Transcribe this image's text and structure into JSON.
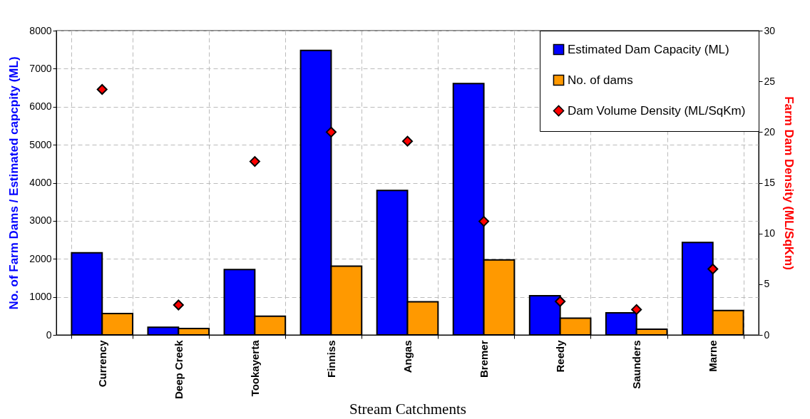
{
  "chart_data": {
    "type": "bar",
    "xlabel": "Stream Catchments",
    "ylabel": "No. of Farm Dams / Estimated capcpity (ML)",
    "y2label": "Farm Dam Density (ML/SqKm)",
    "categories": [
      "Currency",
      "Deep Creek",
      "Tookayerta",
      "Finniss",
      "Angas",
      "Bremer",
      "Reedy",
      "Saunders",
      "Marne"
    ],
    "series": [
      {
        "name": "Estimated Dam Capacity (ML)",
        "color": "#0000ff",
        "values": [
          2160,
          200,
          1720,
          7480,
          3800,
          6610,
          1030,
          580,
          2430
        ]
      },
      {
        "name": "No. of dams",
        "color": "#ff9900",
        "values": [
          560,
          170,
          490,
          1810,
          870,
          1970,
          440,
          150,
          640
        ]
      },
      {
        "name": "Dam Volume Density (ML/SqKm)",
        "type": "scatter",
        "axis": "y2",
        "marker": "diamond",
        "color": "#ff0000",
        "values": [
          24.2,
          2.95,
          17.1,
          20.0,
          19.1,
          11.2,
          3.3,
          2.5,
          6.5
        ]
      }
    ],
    "ylim": [
      0,
      8000
    ],
    "yticks": [
      0,
      1000,
      2000,
      3000,
      4000,
      5000,
      6000,
      7000,
      8000
    ],
    "y2lim": [
      0,
      30
    ],
    "y2ticks": [
      0,
      5,
      10,
      15,
      20,
      25,
      30
    ],
    "grid": true,
    "legend": "top right"
  }
}
